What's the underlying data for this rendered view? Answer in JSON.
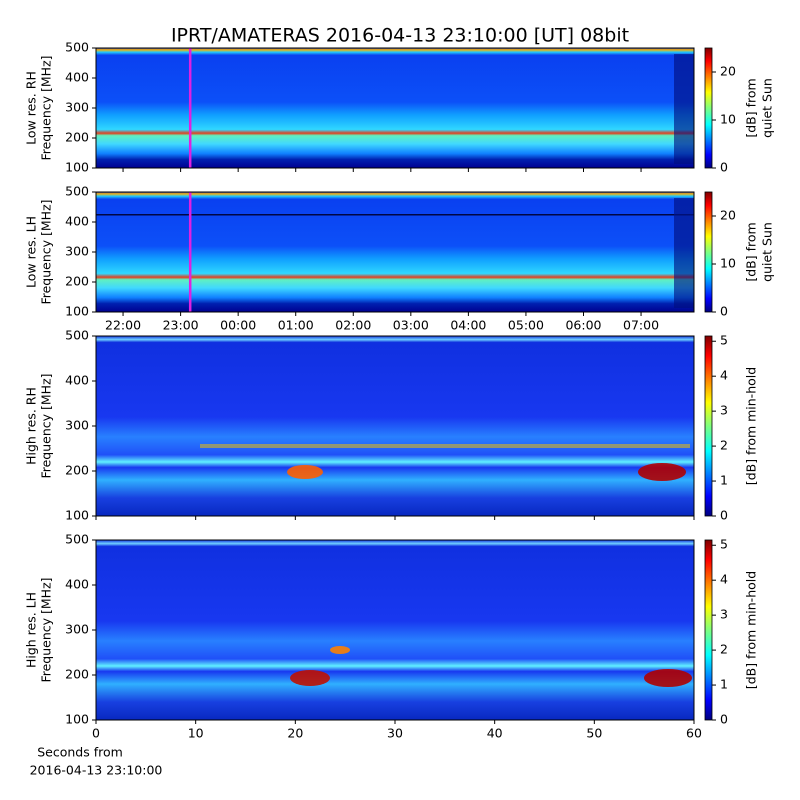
{
  "chart_data": [
    {
      "type": "heatmap",
      "title": "IPRT/AMATERAS 2016-04-13 23:10:00 [UT]   08bit",
      "ylabel": [
        "Low res. RH",
        "Frequency [MHz]"
      ],
      "ylim": [
        100,
        500
      ],
      "yticks": [
        100,
        200,
        300,
        400,
        500
      ],
      "xlim": [
        21.53,
        31.92
      ],
      "marker_x": 23.1667,
      "marker_color": "#e020e0",
      "colorbar_label": [
        "[dB] from",
        "quiet Sun"
      ],
      "clim": [
        0,
        25
      ],
      "cticks": [
        0,
        10,
        20
      ]
    },
    {
      "type": "heatmap",
      "ylabel": [
        "Low res. LH",
        "Frequency [MHz]"
      ],
      "ylim": [
        100,
        500
      ],
      "yticks": [
        100,
        200,
        300,
        400,
        500
      ],
      "xlim": [
        21.53,
        31.92
      ],
      "marker_x": 23.1667,
      "marker_color": "#e020e0",
      "xticks": [
        {
          "value": 22,
          "label": "22:00"
        },
        {
          "value": 23,
          "label": "23:00"
        },
        {
          "value": 24,
          "label": "00:00"
        },
        {
          "value": 25,
          "label": "01:00"
        },
        {
          "value": 26,
          "label": "02:00"
        },
        {
          "value": 27,
          "label": "03:00"
        },
        {
          "value": 28,
          "label": "04:00"
        },
        {
          "value": 29,
          "label": "05:00"
        },
        {
          "value": 30,
          "label": "06:00"
        },
        {
          "value": 31,
          "label": "07:00"
        }
      ],
      "colorbar_label": [
        "[dB] from",
        "quiet Sun"
      ],
      "clim": [
        0,
        25
      ],
      "cticks": [
        0,
        10,
        20
      ]
    },
    {
      "type": "heatmap",
      "ylabel": [
        "High res. RH",
        "Frequency [MHz]"
      ],
      "ylim": [
        100,
        500
      ],
      "yticks": [
        100,
        200,
        300,
        400,
        500
      ],
      "xlim": [
        0,
        60
      ],
      "colorbar_label": [
        "[dB] from min-hold"
      ],
      "clim": [
        0,
        5.15
      ],
      "cticks": [
        0,
        1,
        2,
        3,
        4,
        5
      ]
    },
    {
      "type": "heatmap",
      "ylabel": [
        "High res. LH",
        "Frequency [MHz]"
      ],
      "ylim": [
        100,
        500
      ],
      "yticks": [
        100,
        200,
        300,
        400,
        500
      ],
      "xlim": [
        0,
        60
      ],
      "xticks": [
        0,
        10,
        20,
        30,
        40,
        50,
        60
      ],
      "xlabel": [
        "Seconds from",
        "2016-04-13 23:10:00"
      ],
      "colorbar_label": [
        "[dB] from min-hold"
      ],
      "clim": [
        0,
        5.15
      ],
      "cticks": [
        0,
        1,
        2,
        3,
        4,
        5
      ]
    }
  ]
}
